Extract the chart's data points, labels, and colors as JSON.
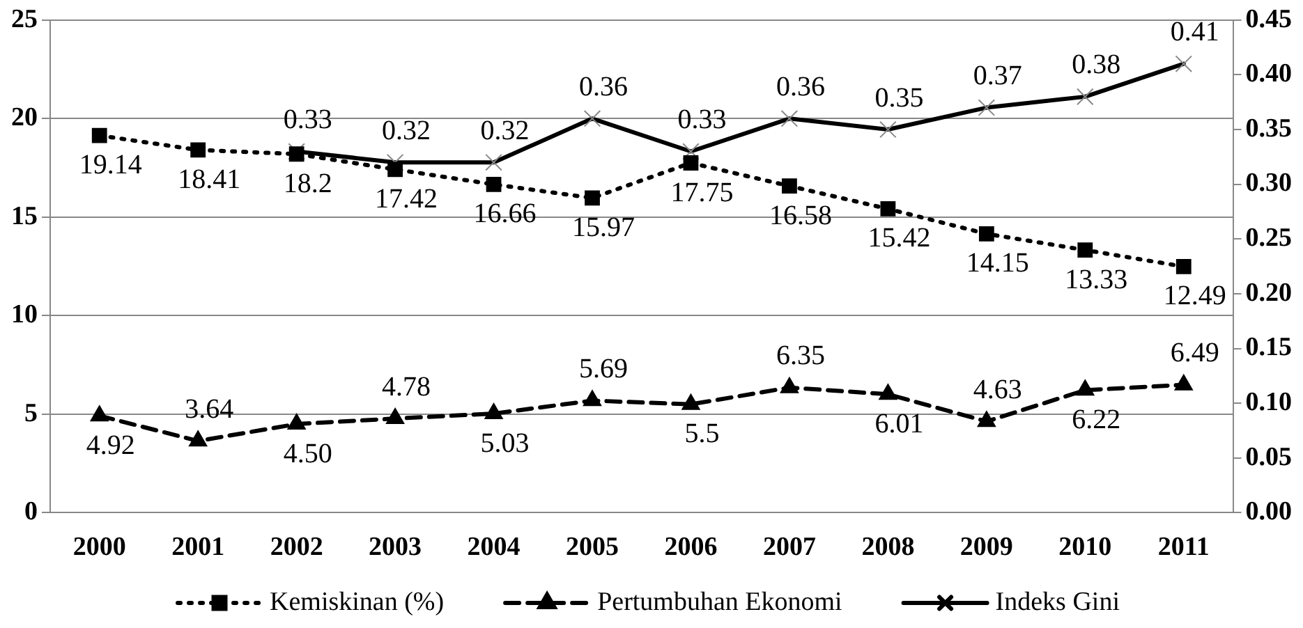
{
  "chart_data": {
    "type": "line",
    "categories": [
      "2000",
      "2001",
      "2002",
      "2003",
      "2004",
      "2005",
      "2006",
      "2007",
      "2008",
      "2009",
      "2010",
      "2011"
    ],
    "series": [
      {
        "name": "Kemiskinan (%)",
        "color": "#000000",
        "marker": "square",
        "line_style": "dotted",
        "values": [
          19.14,
          18.41,
          18.2,
          17.42,
          16.66,
          15.97,
          17.75,
          16.58,
          15.42,
          14.15,
          13.33,
          12.49
        ]
      },
      {
        "name": "Pertumbuhan Ekonomi",
        "color": "#000000",
        "marker": "triangle",
        "line_style": "dashed",
        "values": [
          4.92,
          3.64,
          4.5,
          4.78,
          5.03,
          5.69,
          5.5,
          6.35,
          6.01,
          4.63,
          6.22,
          6.49
        ],
        "value_labels": [
          "4.92",
          "3.64",
          "4.50",
          "4.78",
          "5.03",
          "5.69",
          "5.5",
          "6.35",
          "6.01",
          "4.63",
          "6.22",
          "6.49"
        ]
      },
      {
        "name": "Indeks Gini",
        "color": "#000000",
        "marker": "cross",
        "line_style": "solid",
        "axis": "y2",
        "values": [
          null,
          null,
          0.33,
          0.32,
          0.32,
          0.36,
          0.33,
          0.36,
          0.35,
          0.37,
          0.38,
          0.41
        ]
      }
    ],
    "ylim": [
      0,
      25
    ],
    "yticks": [
      0,
      5,
      10,
      15,
      20,
      25
    ],
    "y2lim": [
      0,
      0.45
    ],
    "y2ticks": [
      {
        "value": 0,
        "label": "0.00"
      },
      {
        "value": 0.05,
        "label": "0.05"
      },
      {
        "value": 0.1,
        "label": "0.10"
      },
      {
        "value": 0.15,
        "label": "0.15"
      },
      {
        "value": 0.2,
        "label": "0.20"
      },
      {
        "value": 0.25,
        "label": "0.25"
      },
      {
        "value": 0.3,
        "label": "0.30"
      },
      {
        "value": 0.35,
        "label": "0.35"
      },
      {
        "value": 0.4,
        "label": "0.40"
      },
      {
        "value": 0.45,
        "label": "0.45"
      }
    ],
    "grid": "y",
    "legend": "bottom",
    "data_labels": true
  }
}
